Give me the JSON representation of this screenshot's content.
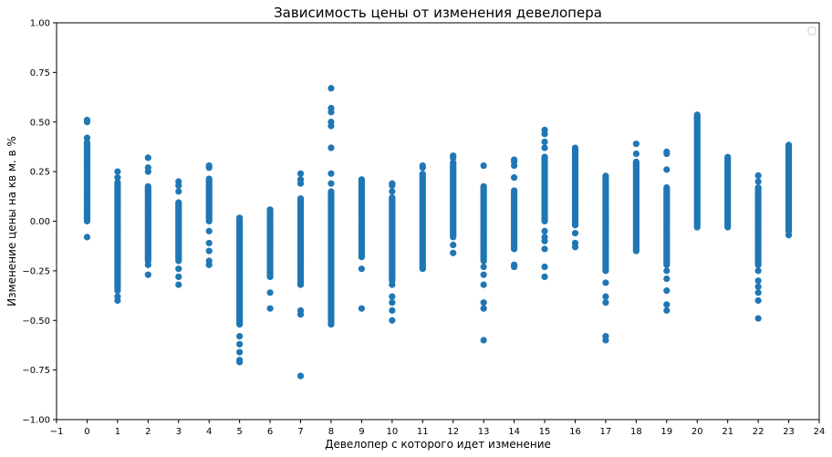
{
  "chart_data": {
    "type": "scatter",
    "title": "Зависимость цены от изменения девелопера",
    "xlabel": "Девелопер с которого идет изменение",
    "ylabel": "Изменение цены на кв м. в %",
    "xlim": [
      -1,
      24
    ],
    "ylim": [
      -1.0,
      1.0
    ],
    "x_ticks": [
      "−1",
      "0",
      "1",
      "2",
      "3",
      "4",
      "5",
      "6",
      "7",
      "8",
      "9",
      "10",
      "11",
      "12",
      "13",
      "14",
      "15",
      "16",
      "17",
      "18",
      "19",
      "20",
      "21",
      "22",
      "23",
      "24"
    ],
    "y_ticks": [
      "−1.00",
      "−0.75",
      "−0.50",
      "−0.25",
      "0.00",
      "0.25",
      "0.50",
      "0.75",
      "1.00"
    ],
    "grid": false,
    "legend": "top-right (empty)",
    "color": "#1f77b4",
    "series": [
      {
        "columns": [
          {
            "x": 0,
            "ranges": [
              [
                0.0,
                0.4
              ]
            ],
            "points": [
              -0.08,
              0.42,
              0.5,
              0.51,
              0.02,
              0.03
            ]
          },
          {
            "x": 1,
            "ranges": [
              [
                -0.35,
                0.2
              ]
            ],
            "points": [
              -0.4,
              -0.38,
              0.25,
              0.22
            ]
          },
          {
            "x": 2,
            "ranges": [
              [
                -0.2,
                0.18
              ]
            ],
            "points": [
              -0.27,
              -0.22,
              0.25,
              0.27,
              0.32
            ]
          },
          {
            "x": 3,
            "ranges": [
              [
                -0.2,
                0.1
              ]
            ],
            "points": [
              -0.32,
              -0.28,
              -0.24,
              0.15,
              0.18,
              0.2
            ]
          },
          {
            "x": 4,
            "ranges": [
              [
                0.0,
                0.22
              ]
            ],
            "points": [
              -0.22,
              -0.2,
              -0.15,
              -0.11,
              -0.05,
              0.27,
              0.28
            ]
          },
          {
            "x": 5,
            "ranges": [
              [
                -0.52,
                0.02
              ]
            ],
            "points": [
              -0.58,
              -0.62,
              -0.66,
              -0.7,
              -0.71
            ]
          },
          {
            "x": 6,
            "ranges": [
              [
                -0.28,
                0.06
              ]
            ],
            "points": [
              -0.36,
              -0.44
            ]
          },
          {
            "x": 7,
            "ranges": [
              [
                -0.32,
                0.12
              ]
            ],
            "points": [
              -0.45,
              -0.47,
              0.19,
              0.21,
              0.24,
              -0.78
            ]
          },
          {
            "x": 8,
            "ranges": [
              [
                -0.52,
                0.15
              ]
            ],
            "points": [
              0.19,
              0.24,
              0.37,
              0.48,
              0.5,
              0.55,
              0.57,
              0.67
            ]
          },
          {
            "x": 9,
            "ranges": [
              [
                -0.18,
                0.21
              ]
            ],
            "points": [
              -0.24,
              -0.44
            ]
          },
          {
            "x": 10,
            "ranges": [
              [
                -0.3,
                0.12
              ]
            ],
            "points": [
              -0.32,
              -0.38,
              -0.41,
              -0.45,
              -0.5,
              0.15,
              0.18,
              0.19
            ]
          },
          {
            "x": 11,
            "ranges": [
              [
                -0.24,
                0.24
              ]
            ],
            "points": [
              0.27,
              0.28
            ]
          },
          {
            "x": 12,
            "ranges": [
              [
                -0.08,
                0.3
              ]
            ],
            "points": [
              -0.12,
              -0.16,
              0.32,
              0.33
            ]
          },
          {
            "x": 13,
            "ranges": [
              [
                -0.2,
                0.18
              ]
            ],
            "points": [
              -0.23,
              -0.27,
              -0.32,
              -0.41,
              -0.44,
              -0.6,
              0.28
            ]
          },
          {
            "x": 14,
            "ranges": [
              [
                -0.14,
                0.16
              ]
            ],
            "points": [
              -0.22,
              -0.23,
              0.22,
              0.28,
              0.3,
              0.31
            ]
          },
          {
            "x": 15,
            "ranges": [
              [
                0.0,
                0.33
              ]
            ],
            "points": [
              -0.05,
              -0.08,
              -0.1,
              -0.14,
              -0.23,
              -0.28,
              0.37,
              0.4,
              0.44,
              0.46
            ]
          },
          {
            "x": 16,
            "ranges": [
              [
                -0.02,
                0.37
              ]
            ],
            "points": [
              -0.06,
              -0.11,
              -0.13
            ]
          },
          {
            "x": 17,
            "ranges": [
              [
                -0.25,
                0.23
              ]
            ],
            "points": [
              -0.31,
              -0.38,
              -0.41,
              -0.58,
              -0.6
            ]
          },
          {
            "x": 18,
            "ranges": [
              [
                -0.15,
                0.3
              ]
            ],
            "points": [
              0.34,
              0.39
            ]
          },
          {
            "x": 19,
            "ranges": [
              [
                -0.22,
                0.17
              ]
            ],
            "points": [
              -0.25,
              -0.29,
              -0.35,
              -0.42,
              -0.45,
              0.26,
              0.34,
              0.35
            ]
          },
          {
            "x": 20,
            "ranges": [
              [
                -0.03,
                0.54
              ]
            ],
            "points": []
          },
          {
            "x": 21,
            "ranges": [
              [
                -0.03,
                0.33
              ]
            ],
            "points": []
          },
          {
            "x": 22,
            "ranges": [
              [
                -0.22,
                0.17
              ]
            ],
            "points": [
              -0.25,
              -0.3,
              -0.33,
              -0.36,
              -0.4,
              -0.49,
              0.2,
              0.23
            ]
          },
          {
            "x": 23,
            "ranges": [
              [
                -0.05,
                0.39
              ]
            ],
            "points": [
              -0.07
            ]
          }
        ]
      }
    ]
  }
}
